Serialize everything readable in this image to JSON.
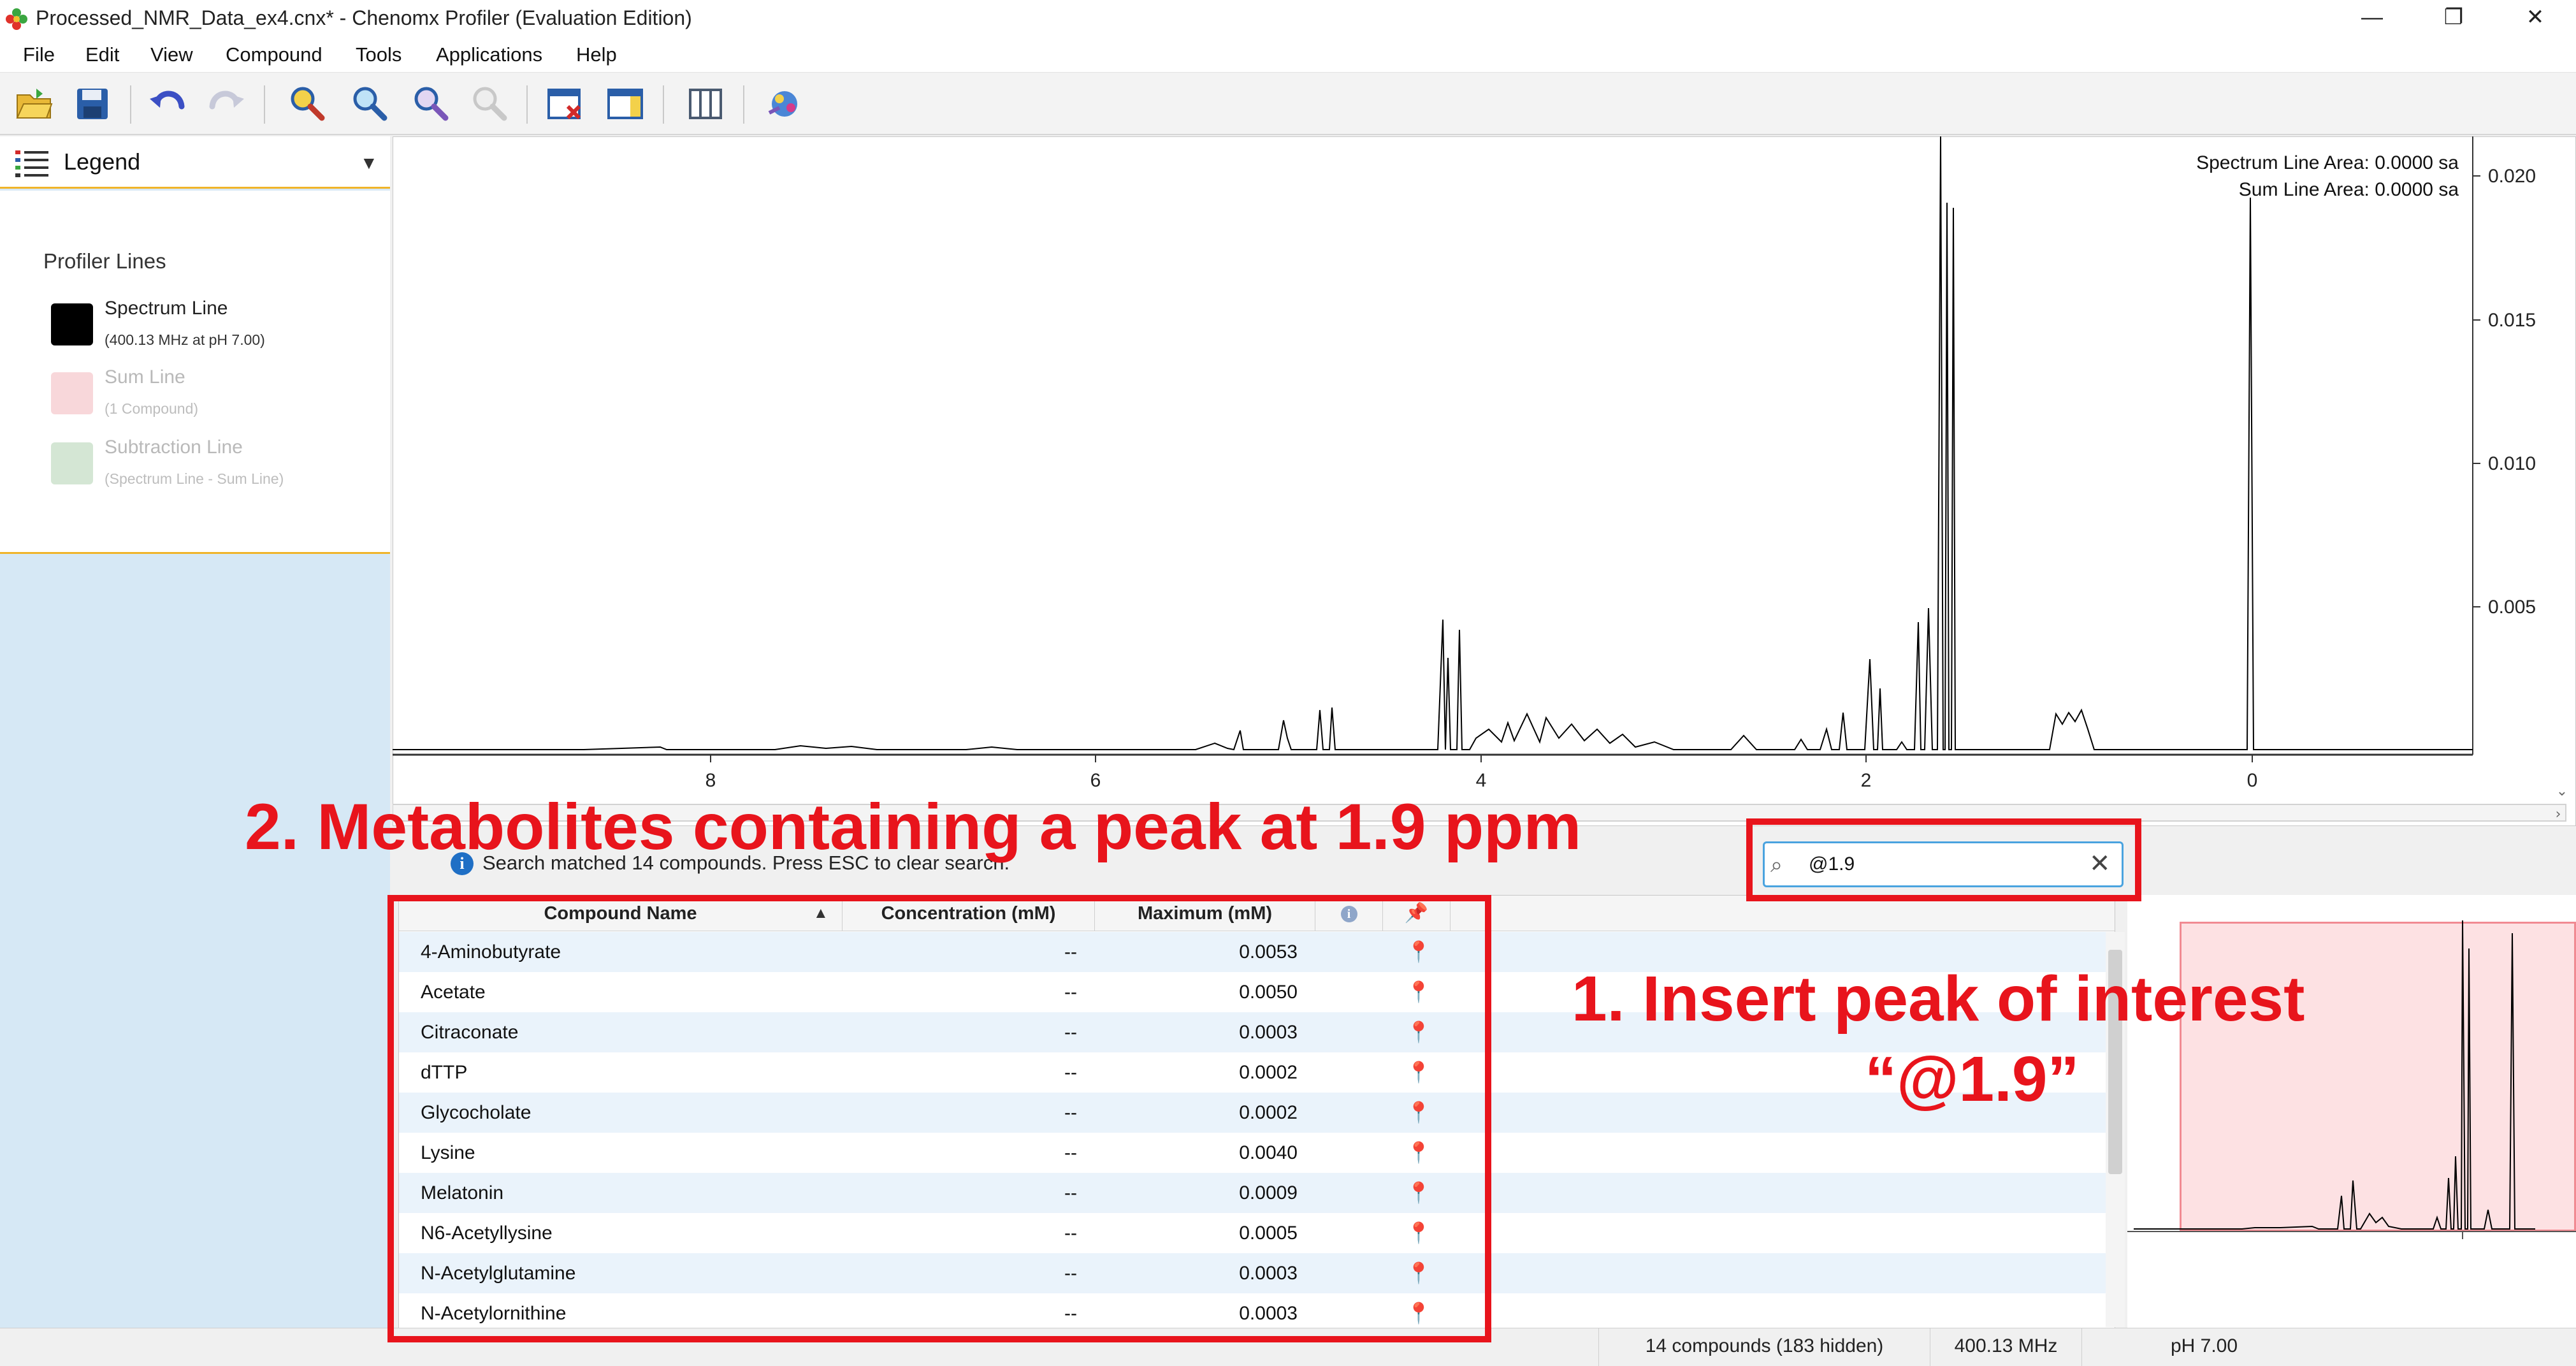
{
  "window": {
    "title": "Processed_NMR_Data_ex4.cnx* - Chenomx Profiler (Evaluation Edition)",
    "minimize": "—",
    "restore": "❐",
    "close": "✕"
  },
  "menu": [
    "File",
    "Edit",
    "View",
    "Compound",
    "Tools",
    "Applications",
    "Help"
  ],
  "toolbar": {
    "icons": [
      "open-folder-icon",
      "save-icon",
      "undo-icon",
      "redo-icon",
      "zoom-in-icon",
      "zoom-fit-icon",
      "zoom-out-icon",
      "zoom-reset-icon",
      "window-remove-icon",
      "window-layout-icon",
      "columns-icon",
      "network-icon"
    ]
  },
  "legend": {
    "title": "Legend",
    "section": "Profiler Lines",
    "items": [
      {
        "name": "Spectrum Line",
        "sub": "(400.13 MHz at pH 7.00)",
        "color": "#000000"
      },
      {
        "name": "Sum Line",
        "sub": "(1 Compound)",
        "color": "#f8d7da"
      },
      {
        "name": "Subtraction Line",
        "sub": "(Spectrum Line  - Sum Line)",
        "color": "#d4e6d4"
      }
    ]
  },
  "spectrum": {
    "info_area": "Spectrum Line Area: 0.0000 sa",
    "info_sum": "Sum Line Area: 0.0000 sa",
    "x_ticks": [
      "8",
      "6",
      "4",
      "2",
      "0"
    ],
    "y_ticks": [
      "0.020",
      "0.015",
      "0.010",
      "0.005"
    ]
  },
  "search": {
    "status": "Search matched 14 compounds.  Press ESC to clear search.",
    "value": "@1.9",
    "clear": "✕"
  },
  "table": {
    "columns": [
      "Compound Name",
      "Concentration (mM)",
      "Maximum (mM)"
    ],
    "sort_indicator": "▲",
    "rows": [
      {
        "name": "4-Aminobutyrate",
        "conc": "--",
        "max": "0.0053"
      },
      {
        "name": "Acetate",
        "conc": "--",
        "max": "0.0050"
      },
      {
        "name": "Citraconate",
        "conc": "--",
        "max": "0.0003"
      },
      {
        "name": "dTTP",
        "conc": "--",
        "max": "0.0002"
      },
      {
        "name": "Glycocholate",
        "conc": "--",
        "max": "0.0002"
      },
      {
        "name": "Lysine",
        "conc": "--",
        "max": "0.0040"
      },
      {
        "name": "Melatonin",
        "conc": "--",
        "max": "0.0009"
      },
      {
        "name": "N6-Acetyllysine",
        "conc": "--",
        "max": "0.0005"
      },
      {
        "name": "N-Acetylglutamine",
        "conc": "--",
        "max": "0.0003"
      },
      {
        "name": "N-Acetylornithine",
        "conc": "--",
        "max": "0.0003"
      }
    ]
  },
  "status_bar": {
    "compounds": "14 compounds (183 hidden)",
    "frequency": "400.13 MHz",
    "ph": "pH 7.00"
  },
  "annotations": {
    "step2": "2. Metabolites containing a peak at 1.9 ppm",
    "step1_line1": "1.  Insert peak of interest",
    "step1_line2": "“@1.9”",
    "color": "#e8141c"
  }
}
